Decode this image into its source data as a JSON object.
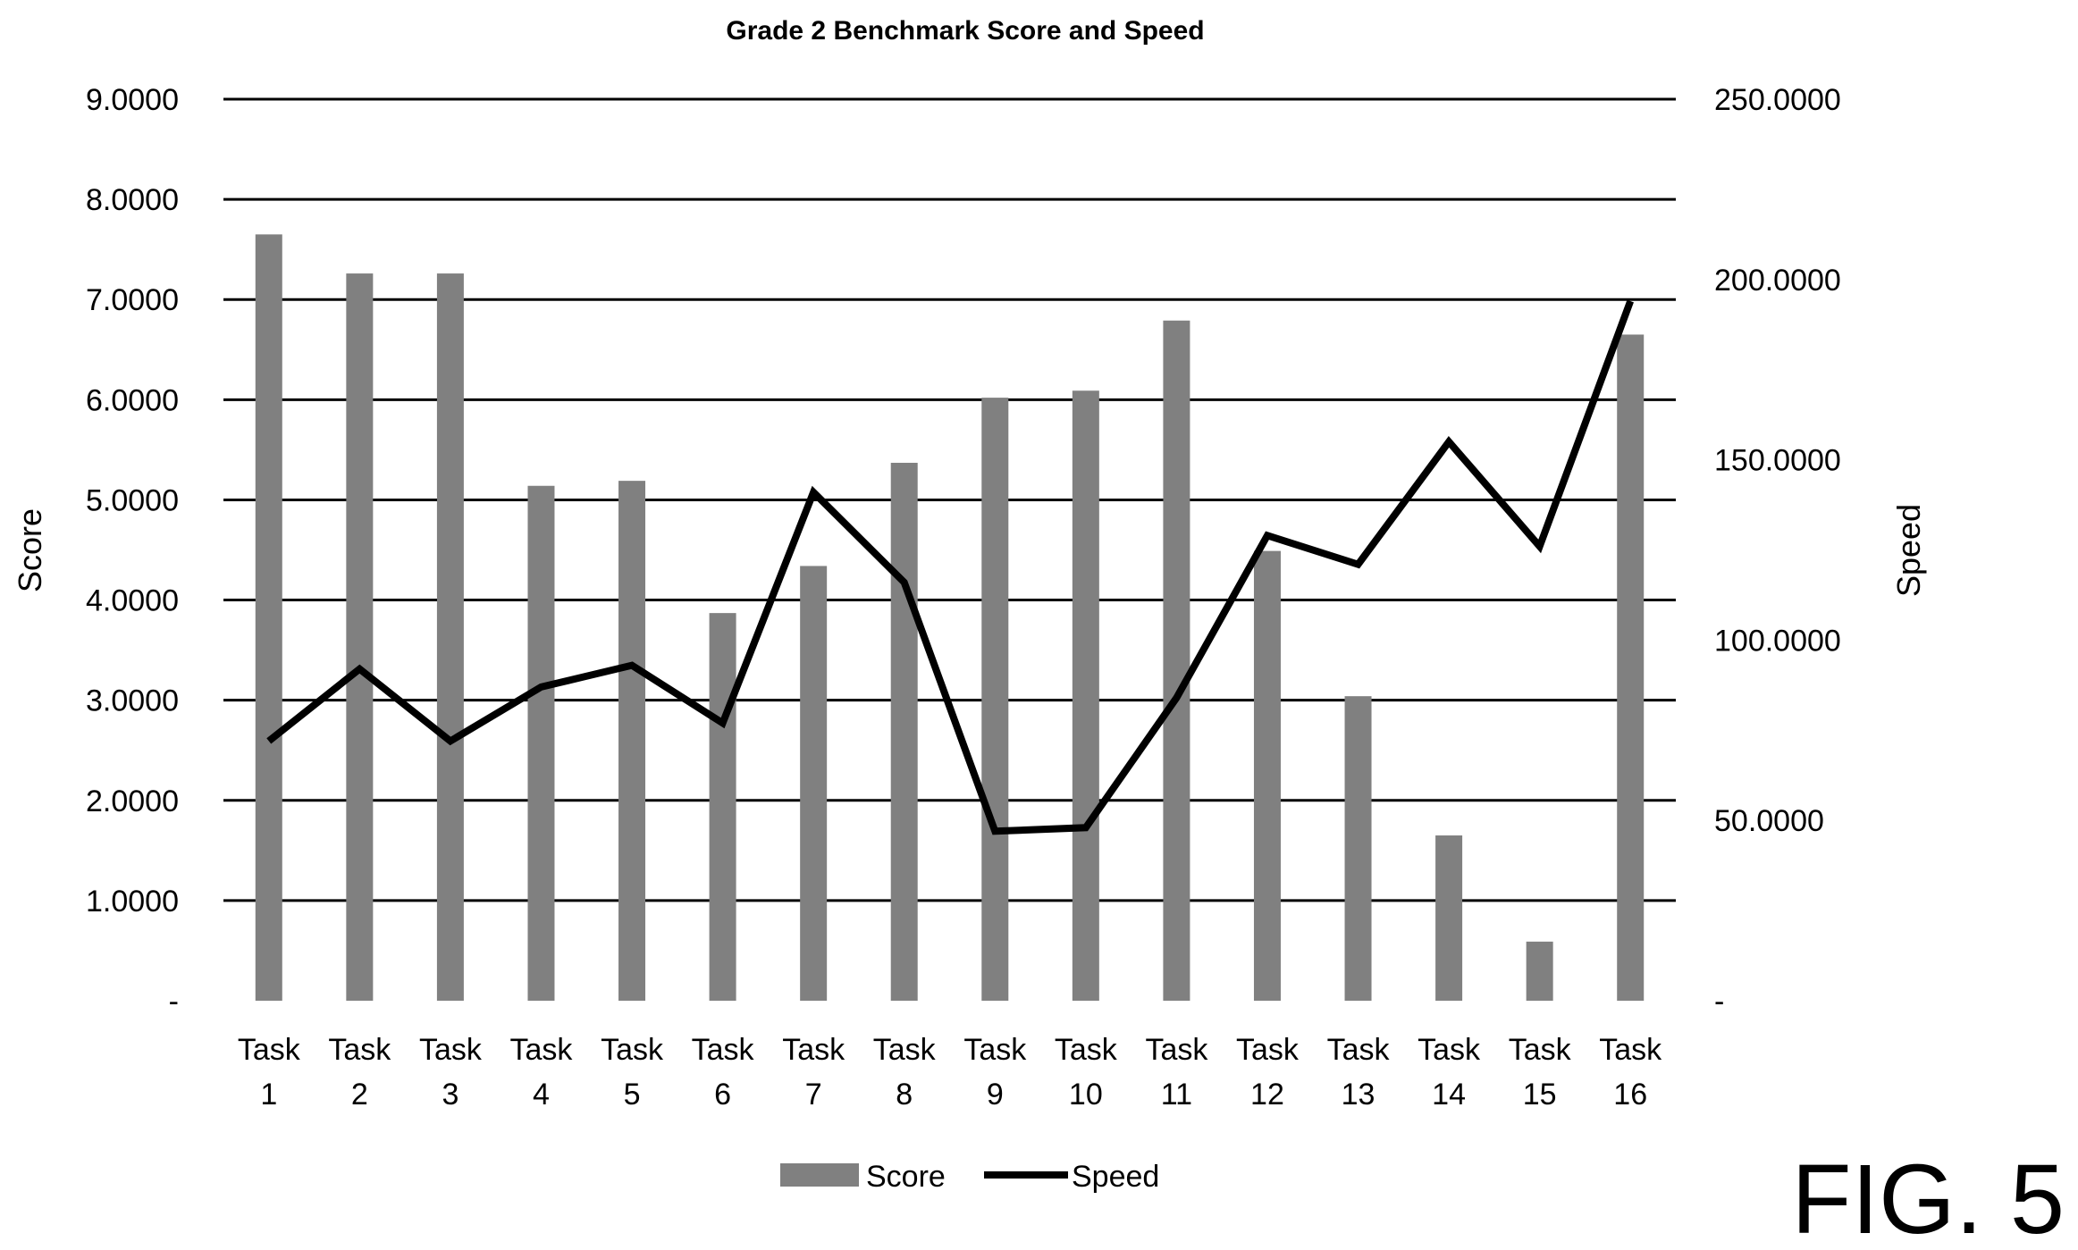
{
  "figure_label": "FIG. 5",
  "chart_data": {
    "type": "bar",
    "title": "Grade 2 Benchmark Score and Speed",
    "categories": [
      [
        "Task",
        "1"
      ],
      [
        "Task",
        "2"
      ],
      [
        "Task",
        "3"
      ],
      [
        "Task",
        "4"
      ],
      [
        "Task",
        "5"
      ],
      [
        "Task",
        "6"
      ],
      [
        "Task",
        "7"
      ],
      [
        "Task",
        "8"
      ],
      [
        "Task",
        "9"
      ],
      [
        "Task",
        "10"
      ],
      [
        "Task",
        "11"
      ],
      [
        "Task",
        "12"
      ],
      [
        "Task",
        "13"
      ],
      [
        "Task",
        "14"
      ],
      [
        "Task",
        "15"
      ],
      [
        "Task",
        "16"
      ]
    ],
    "ylabel": "Score",
    "y2label": "Speed",
    "ylim": [
      0,
      9
    ],
    "y2lim": [
      0,
      250
    ],
    "yticks": [
      "-",
      "1.0000",
      "2.0000",
      "3.0000",
      "4.0000",
      "5.0000",
      "6.0000",
      "7.0000",
      "8.0000",
      "9.0000"
    ],
    "y2ticks": [
      "-",
      "50.0000",
      "100.0000",
      "150.0000",
      "200.0000",
      "250.0000"
    ],
    "grid": true,
    "legend_position": "bottom",
    "series": [
      {
        "name": "Score",
        "type": "bar",
        "axis": "left",
        "color": "#808080",
        "values": [
          7.65,
          7.26,
          7.26,
          5.14,
          5.19,
          3.87,
          4.34,
          5.37,
          6.02,
          6.09,
          6.79,
          4.49,
          3.04,
          1.65,
          0.59,
          6.65
        ]
      },
      {
        "name": "Speed",
        "type": "line",
        "axis": "right",
        "color": "#000000",
        "values": [
          72,
          92,
          72,
          87,
          93,
          77,
          141,
          116,
          47,
          48,
          84,
          129,
          121,
          155,
          126,
          194
        ]
      }
    ]
  }
}
